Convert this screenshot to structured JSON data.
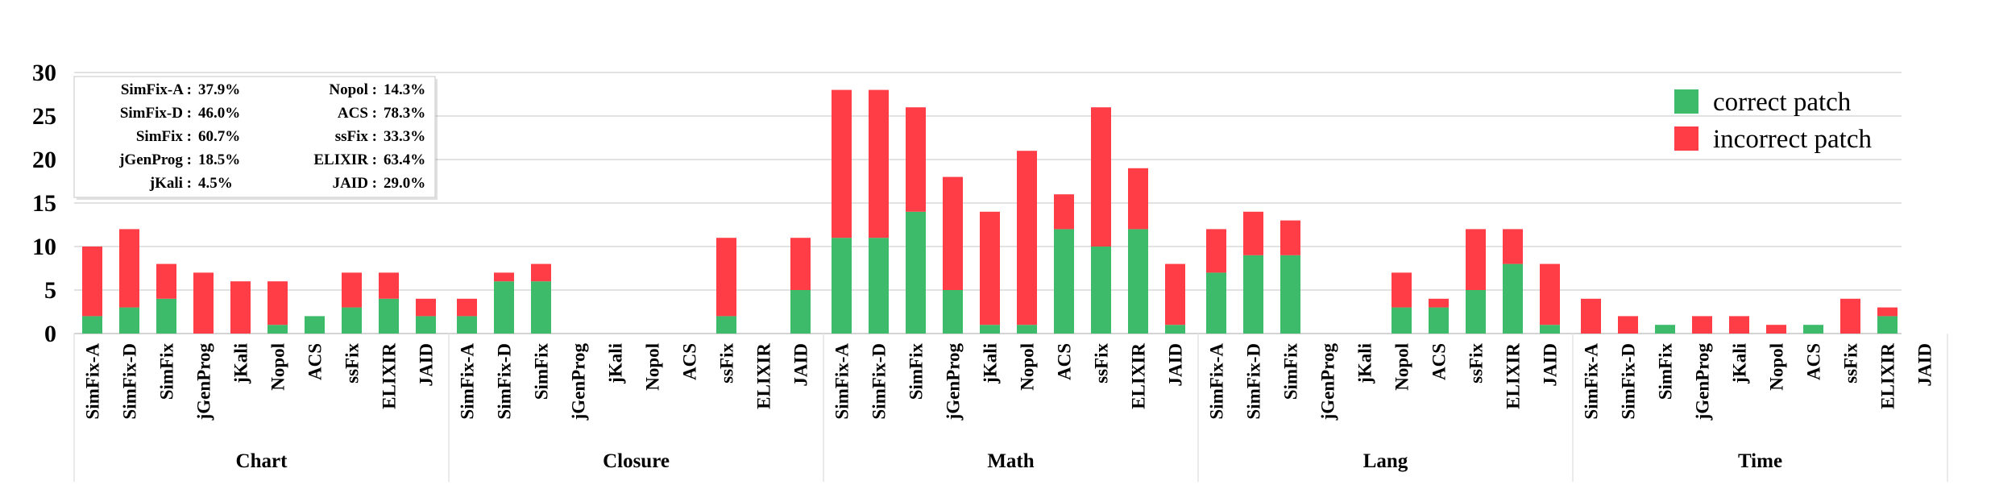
{
  "chart_data": {
    "type": "bar",
    "stacked": true,
    "ylim": [
      0,
      30
    ],
    "yticks": [
      0,
      5,
      10,
      15,
      20,
      25,
      30
    ],
    "grid": "horizontal",
    "legend_position": "top-right",
    "colors": {
      "correct": "#3dbb6b",
      "incorrect": "#ff3d46"
    },
    "legend": [
      {
        "key": "correct",
        "label": "correct patch"
      },
      {
        "key": "incorrect",
        "label": "incorrect patch"
      }
    ],
    "tools": [
      "SimFix-A",
      "SimFix-D",
      "SimFix",
      "jGenProg",
      "jKali",
      "Nopol",
      "ACS",
      "ssFix",
      "ELIXIR",
      "JAID"
    ],
    "groups": [
      {
        "name": "Chart",
        "correct": [
          2,
          3,
          4,
          0,
          0,
          1,
          2,
          3,
          4,
          2
        ],
        "incorrect": [
          8,
          9,
          4,
          7,
          6,
          5,
          0,
          4,
          3,
          2
        ]
      },
      {
        "name": "Closure",
        "correct": [
          2,
          6,
          6,
          0,
          0,
          0,
          0,
          2,
          0,
          5
        ],
        "incorrect": [
          2,
          1,
          2,
          0,
          0,
          0,
          0,
          9,
          0,
          6
        ]
      },
      {
        "name": "Math",
        "correct": [
          11,
          11,
          14,
          5,
          1,
          1,
          12,
          10,
          12,
          1
        ],
        "incorrect": [
          17,
          17,
          12,
          13,
          13,
          20,
          4,
          16,
          7,
          7
        ]
      },
      {
        "name": "Lang",
        "correct": [
          7,
          9,
          9,
          0,
          0,
          3,
          3,
          5,
          8,
          1
        ],
        "incorrect": [
          5,
          5,
          4,
          0,
          0,
          4,
          1,
          7,
          4,
          7
        ]
      },
      {
        "name": "Time",
        "correct": [
          0,
          0,
          1,
          0,
          0,
          0,
          1,
          0,
          2,
          0
        ],
        "incorrect": [
          4,
          2,
          0,
          2,
          2,
          1,
          0,
          4,
          1,
          0
        ]
      }
    ],
    "precision_box": [
      {
        "tool": "SimFix-A",
        "label": "SimFix-A :",
        "value": "37.9%"
      },
      {
        "tool": "SimFix-D",
        "label": "SimFix-D :",
        "value": "46.0%"
      },
      {
        "tool": "SimFix",
        "label": "SimFix :",
        "value": "60.7%"
      },
      {
        "tool": "jGenProg",
        "label": "jGenProg :",
        "value": "18.5%"
      },
      {
        "tool": "jKali",
        "label": "jKali :",
        "value": "4.5%"
      },
      {
        "tool": "Nopol",
        "label": "Nopol :",
        "value": "14.3%"
      },
      {
        "tool": "ACS",
        "label": "ACS :",
        "value": "78.3%"
      },
      {
        "tool": "ssFix",
        "label": "ssFix :",
        "value": "33.3%"
      },
      {
        "tool": "ELIXIR",
        "label": "ELIXIR :",
        "value": "63.4%"
      },
      {
        "tool": "JAID",
        "label": "JAID :",
        "value": "29.0%"
      }
    ]
  }
}
